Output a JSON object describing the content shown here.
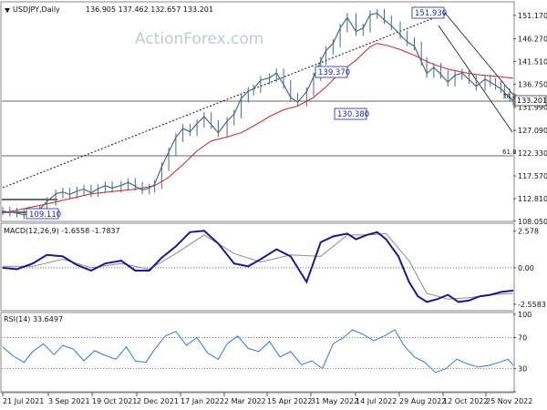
{
  "chart_data": [
    {
      "type": "line",
      "panel": "price",
      "header": {
        "icon": "down-triangle-icon",
        "symbol": "USDJPY,Daily",
        "ohlc": "136.905 137.462 132.657 133.201"
      },
      "watermark": "ActionForex.com",
      "y_ticks": [
        "151.170",
        "146.270",
        "141.510",
        "136.750",
        "131.990",
        "127.090",
        "122.330",
        "117.570",
        "112.810",
        "108.050"
      ],
      "ylim": [
        108.05,
        153.8
      ],
      "current_price": "133.201",
      "annotations": {
        "high": "151.930",
        "mid_high": "139.370",
        "mid_low": "130.380",
        "start_low": "109.110",
        "fib_382": "38.2",
        "fib_618": "61.8"
      },
      "horizontal_levels": [
        133.2,
        121.6
      ],
      "series": [
        {
          "key": "price",
          "color": "#4a6a80",
          "x": [
            0,
            4,
            8,
            12,
            17,
            21,
            25,
            30,
            34,
            38,
            42,
            46,
            50,
            54,
            58,
            62,
            67,
            71,
            75,
            79,
            83,
            86,
            90,
            94,
            98,
            102,
            106,
            110,
            114,
            118,
            122,
            127,
            131,
            135,
            139,
            142,
            146,
            151,
            155,
            159,
            163,
            167,
            172,
            176,
            180,
            183,
            187,
            191,
            195,
            200
          ],
          "y": [
            110.2,
            110.0,
            109.8,
            109.4,
            109.9,
            110.6,
            112.2,
            113.8,
            114.2,
            113.7,
            114.4,
            114.8,
            114.0,
            114.9,
            115.5,
            115.0,
            115.6,
            116.2,
            115.4,
            114.6,
            115.0,
            115.8,
            119.5,
            122.6,
            125.6,
            127.5,
            126.8,
            128.5,
            130.0,
            128.3,
            126.6,
            129.0,
            130.5,
            133.8,
            135.3,
            135.8,
            137.6,
            138.1,
            139.1,
            136.7,
            134.0,
            133.0,
            135.2,
            138.3,
            141.6,
            143.8,
            145.3,
            148.5,
            150.7,
            147.8
          ]
        },
        {
          "key": "ma",
          "color": "#d02020",
          "x": [
            0,
            25,
            50,
            75,
            86,
            94,
            102,
            110,
            118,
            127,
            135,
            142,
            151,
            159,
            167,
            176,
            183,
            191,
            200
          ],
          "y": [
            109.8,
            111.7,
            113.8,
            114.8,
            115.5,
            117.3,
            119.9,
            122.8,
            124.9,
            125.7,
            126.6,
            128.0,
            130.0,
            131.4,
            132.2,
            134.0,
            136.2,
            139.2,
            141.8
          ]
        }
      ],
      "forecast": {
        "x": [
          200,
          204,
          208,
          212,
          216,
          220,
          225,
          229,
          233,
          237,
          240,
          244,
          248,
          252,
          256,
          260,
          264,
          268,
          273,
          276,
          279,
          282,
          284,
          287,
          289
        ],
        "price": [
          147.8,
          148.5,
          151.3,
          151.6,
          150.2,
          149.0,
          147.1,
          145.6,
          144.7,
          141.5,
          139.0,
          140.3,
          138.8,
          137.2,
          138.6,
          139.1,
          137.7,
          136.3,
          137.8,
          137.2,
          136.5,
          135.8,
          135.0,
          134.0,
          133.2
        ],
        "ma": [
          141.8,
          143.2,
          144.6,
          145.3,
          145.0,
          144.6,
          144.0,
          143.4,
          142.8,
          142.1,
          141.5,
          140.9,
          140.4,
          139.9,
          139.6,
          139.3,
          139.0,
          138.8,
          138.6,
          138.5,
          138.4,
          138.3,
          138.2,
          138.1,
          138.0
        ]
      }
    },
    {
      "type": "line",
      "panel": "macd",
      "label": "MACD(12,26,9) -1.6558 -1.7837",
      "y_ticks": [
        "2.578",
        "0.00",
        "-2.5583"
      ],
      "ylim": [
        -2.95,
        3.0
      ],
      "series": [
        {
          "key": "macd",
          "color": "#1a1a8a",
          "x": [
            0,
            8,
            17,
            25,
            34,
            42,
            50,
            58,
            67,
            75,
            83,
            90,
            98,
            106,
            114,
            122,
            131,
            139,
            146,
            155,
            163,
            172,
            180,
            187,
            195,
            200,
            206,
            212,
            217,
            224,
            230,
            235,
            240,
            246,
            252,
            258,
            264,
            270,
            276,
            282,
            289
          ],
          "y": [
            0.0,
            -0.1,
            0.3,
            0.9,
            0.8,
            0.2,
            -0.2,
            0.3,
            0.5,
            -0.2,
            -0.2,
            0.7,
            1.5,
            2.5,
            2.6,
            1.7,
            0.3,
            0.1,
            0.6,
            1.3,
            0.8,
            -1.0,
            1.8,
            2.2,
            2.4,
            2.0,
            2.3,
            2.5,
            2.0,
            0.8,
            -1.0,
            -2.0,
            -2.4,
            -2.2,
            -1.9,
            -2.4,
            -2.3,
            -2.0,
            -1.9,
            -1.7,
            -1.6
          ]
        },
        {
          "key": "signal",
          "color": "#8a8a8a",
          "x": [
            0,
            17,
            34,
            50,
            67,
            83,
            98,
            114,
            131,
            146,
            163,
            180,
            195,
            206,
            217,
            230,
            240,
            252,
            264,
            276,
            289
          ],
          "y": [
            0.1,
            0.1,
            0.6,
            0.0,
            0.3,
            -0.1,
            1.0,
            2.3,
            1.0,
            0.4,
            0.9,
            0.8,
            2.3,
            2.3,
            2.4,
            0.5,
            -1.8,
            -2.2,
            -2.1,
            -1.9,
            -1.8
          ]
        }
      ]
    },
    {
      "type": "line",
      "panel": "rsi",
      "label": "RSI(14) 33.6497",
      "y_ticks": [
        "100",
        "70",
        "30",
        "0"
      ],
      "ylim": [
        0,
        100
      ],
      "series": [
        {
          "key": "rsi",
          "color": "#2a7ae0",
          "x": [
            0,
            6,
            12,
            17,
            23,
            29,
            34,
            40,
            46,
            52,
            58,
            64,
            70,
            75,
            81,
            86,
            92,
            98,
            104,
            110,
            116,
            122,
            127,
            133,
            139,
            145,
            151,
            157,
            163,
            169,
            175,
            181,
            187,
            193,
            198,
            204,
            210,
            216,
            222,
            227,
            233,
            239,
            245,
            251,
            257,
            263,
            269,
            275,
            281,
            286,
            289
          ],
          "y": [
            58,
            46,
            38,
            52,
            62,
            48,
            60,
            55,
            40,
            53,
            47,
            42,
            58,
            40,
            38,
            55,
            72,
            78,
            60,
            70,
            50,
            42,
            62,
            72,
            56,
            52,
            65,
            45,
            52,
            35,
            40,
            30,
            62,
            70,
            80,
            74,
            66,
            72,
            80,
            60,
            45,
            38,
            25,
            30,
            42,
            36,
            32,
            34,
            38,
            42,
            34
          ]
        }
      ]
    }
  ],
  "x_axis": {
    "dates": [
      "21 Jul 2021",
      "3 Sep 2021",
      "19 Oct 2021",
      "2 Dec 2021",
      "17 Jan 2022",
      "2 Mar 2022",
      "15 Apr 2022",
      "31 May 2022",
      "14 Jul 2022",
      "29 Aug 2022",
      "12 Oct 2022",
      "25 Nov 2022"
    ]
  },
  "colors": {
    "frame": "#888888",
    "price_badge": "#ffffff",
    "box_border": "#1a2aa0",
    "box_fill": "#ffffff",
    "trend_line": "#111111",
    "watermark": "#c4c8d0"
  }
}
